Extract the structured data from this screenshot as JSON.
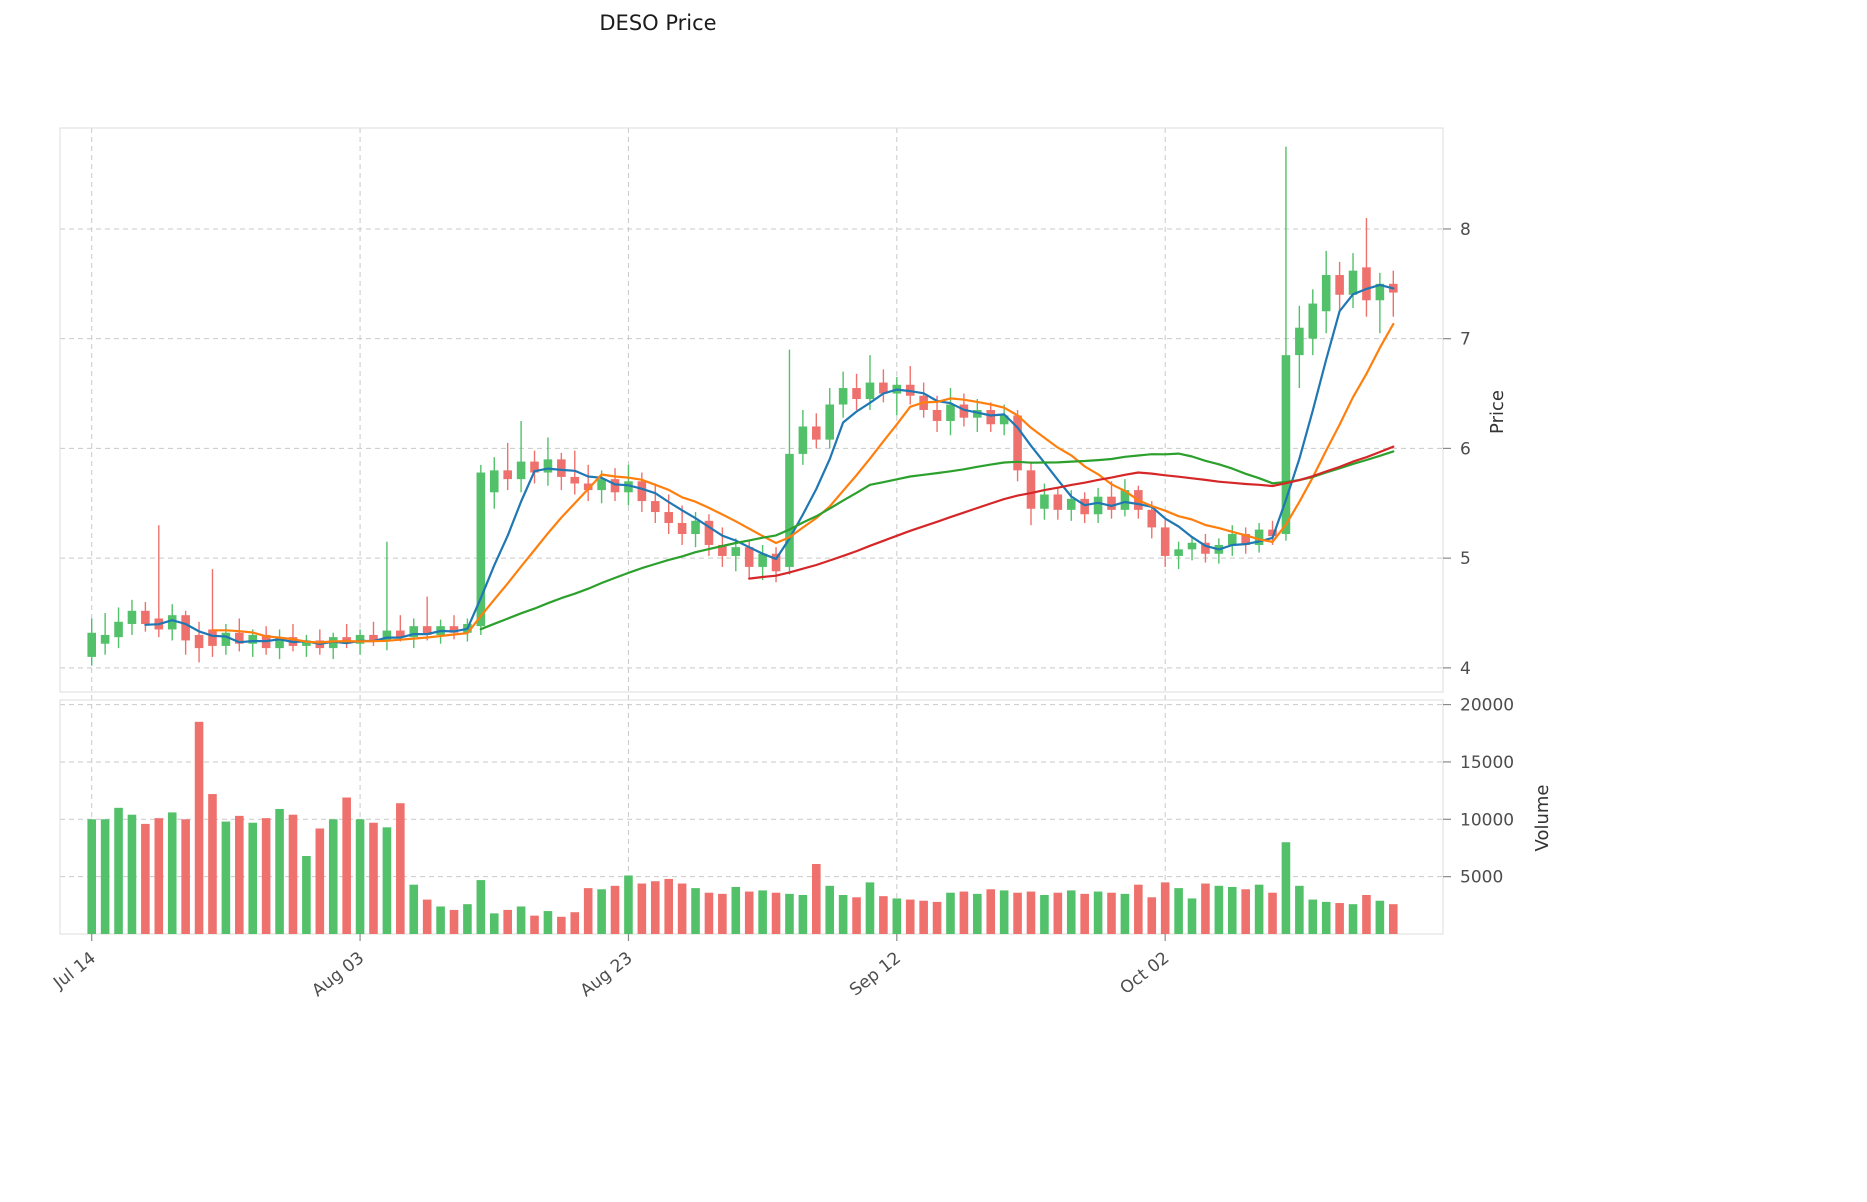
{
  "title": "DESO Price",
  "axes": {
    "price_label": "Price",
    "volume_label": "Volume",
    "price_ticks": [
      4,
      5,
      6,
      7,
      8
    ],
    "volume_ticks": [
      5000,
      10000,
      15000,
      20000
    ],
    "x_ticks": [
      {
        "label": "Jul 14",
        "index": 0
      },
      {
        "label": "Aug 03",
        "index": 20
      },
      {
        "label": "Aug 23",
        "index": 40
      },
      {
        "label": "Sep 12",
        "index": 60
      },
      {
        "label": "Oct 02",
        "index": 80
      }
    ]
  },
  "style": {
    "up_color": "#52c16a",
    "down_color": "#ef716d",
    "grid_color": "#c9c9c9",
    "spine_color": "#dcdcdc",
    "tick_color": "#8a8a8a"
  },
  "chart_data": {
    "type": "candlestick+volume",
    "title": "DESO Price",
    "ylabel_price": "Price",
    "ylabel_volume": "Volume",
    "price_ylim": [
      3.78,
      8.92
    ],
    "volume_ylim": [
      0,
      20400
    ],
    "grid": "dashed",
    "moving_averages": [
      {
        "name": "MA5",
        "period": 5,
        "color": "#1f77b4"
      },
      {
        "name": "MA10",
        "period": 10,
        "color": "#ff7f0e"
      },
      {
        "name": "MA30",
        "period": 30,
        "color": "#2ca02c"
      },
      {
        "name": "MA50",
        "period": 50,
        "color": "#d62728"
      }
    ],
    "ohlcv_columns": [
      "date",
      "open",
      "high",
      "low",
      "close",
      "volume"
    ],
    "ohlcv": [
      [
        "Jul 14",
        4.1,
        4.45,
        4.02,
        4.32,
        10000
      ],
      [
        "Jul 15",
        4.22,
        4.5,
        4.12,
        4.3,
        10000
      ],
      [
        "Jul 16",
        4.28,
        4.55,
        4.18,
        4.42,
        11000
      ],
      [
        "Jul 17",
        4.4,
        4.62,
        4.3,
        4.52,
        10400
      ],
      [
        "Jul 18",
        4.52,
        4.6,
        4.33,
        4.4,
        9600
      ],
      [
        "Jul 19",
        4.45,
        5.3,
        4.28,
        4.35,
        10100
      ],
      [
        "Jul 20",
        4.35,
        4.58,
        4.25,
        4.48,
        10600
      ],
      [
        "Jul 21",
        4.48,
        4.52,
        4.12,
        4.25,
        10000
      ],
      [
        "Jul 22",
        4.3,
        4.42,
        4.05,
        4.18,
        18500
      ],
      [
        "Jul 23",
        4.35,
        4.9,
        4.1,
        4.2,
        12200
      ],
      [
        "Jul 24",
        4.2,
        4.4,
        4.12,
        4.32,
        9800
      ],
      [
        "Jul 25",
        4.32,
        4.45,
        4.15,
        4.22,
        10300
      ],
      [
        "Jul 26",
        4.22,
        4.35,
        4.1,
        4.3,
        9700
      ],
      [
        "Jul 27",
        4.3,
        4.38,
        4.12,
        4.18,
        10100
      ],
      [
        "Jul 28",
        4.18,
        4.35,
        4.08,
        4.28,
        10900
      ],
      [
        "Jul 29",
        4.28,
        4.4,
        4.15,
        4.2,
        10400
      ],
      [
        "Jul 30",
        4.2,
        4.3,
        4.1,
        4.25,
        6800
      ],
      [
        "Jul 31",
        4.25,
        4.35,
        4.12,
        4.18,
        9200
      ],
      [
        "Aug 01",
        4.18,
        4.32,
        4.08,
        4.28,
        10000
      ],
      [
        "Aug 02",
        4.28,
        4.4,
        4.18,
        4.22,
        11900
      ],
      [
        "Aug 03",
        4.22,
        4.35,
        4.12,
        4.3,
        10000
      ],
      [
        "Aug 04",
        4.3,
        4.42,
        4.2,
        4.24,
        9700
      ],
      [
        "Aug 05",
        4.24,
        5.15,
        4.16,
        4.34,
        9300
      ],
      [
        "Aug 06",
        4.34,
        4.48,
        4.24,
        4.28,
        11400
      ],
      [
        "Aug 07",
        4.28,
        4.45,
        4.18,
        4.38,
        4300
      ],
      [
        "Aug 08",
        4.38,
        4.65,
        4.25,
        4.3,
        3000
      ],
      [
        "Aug 09",
        4.3,
        4.44,
        4.22,
        4.38,
        2400
      ],
      [
        "Aug 10",
        4.38,
        4.48,
        4.26,
        4.32,
        2100
      ],
      [
        "Aug 11",
        4.32,
        4.45,
        4.24,
        4.4,
        2600
      ],
      [
        "Aug 12",
        4.38,
        5.85,
        4.3,
        5.78,
        4700
      ],
      [
        "Aug 13",
        5.6,
        5.92,
        5.45,
        5.8,
        1800
      ],
      [
        "Aug 14",
        5.8,
        6.05,
        5.62,
        5.72,
        2100
      ],
      [
        "Aug 15",
        5.72,
        6.25,
        5.6,
        5.88,
        2400
      ],
      [
        "Aug 16",
        5.88,
        5.98,
        5.68,
        5.78,
        1600
      ],
      [
        "Aug 17",
        5.78,
        6.1,
        5.66,
        5.9,
        2000
      ],
      [
        "Aug 18",
        5.9,
        5.96,
        5.62,
        5.74,
        1500
      ],
      [
        "Aug 19",
        5.74,
        5.98,
        5.58,
        5.68,
        1900
      ],
      [
        "Aug 20",
        5.68,
        5.85,
        5.52,
        5.62,
        4000
      ],
      [
        "Aug 21",
        5.62,
        5.8,
        5.5,
        5.72,
        3900
      ],
      [
        "Aug 22",
        5.72,
        5.82,
        5.52,
        5.6,
        4200
      ],
      [
        "Aug 23",
        5.6,
        5.85,
        5.48,
        5.7,
        5100
      ],
      [
        "Aug 24",
        5.7,
        5.78,
        5.42,
        5.52,
        4400
      ],
      [
        "Aug 25",
        5.52,
        5.68,
        5.32,
        5.42,
        4600
      ],
      [
        "Aug 26",
        5.42,
        5.58,
        5.22,
        5.32,
        4800
      ],
      [
        "Aug 27",
        5.32,
        5.48,
        5.12,
        5.22,
        4400
      ],
      [
        "Aug 28",
        5.22,
        5.42,
        5.1,
        5.34,
        4000
      ],
      [
        "Aug 29",
        5.34,
        5.4,
        5.02,
        5.12,
        3600
      ],
      [
        "Aug 30",
        5.12,
        5.28,
        4.92,
        5.02,
        3500
      ],
      [
        "Aug 31",
        5.02,
        5.18,
        4.88,
        5.1,
        4100
      ],
      [
        "Sep 01",
        5.1,
        5.16,
        4.82,
        4.92,
        3700
      ],
      [
        "Sep 02",
        4.92,
        5.12,
        4.8,
        5.04,
        3800
      ],
      [
        "Sep 03",
        5.04,
        5.1,
        4.78,
        4.88,
        3600
      ],
      [
        "Sep 04",
        4.92,
        6.9,
        4.85,
        5.95,
        3500
      ],
      [
        "Sep 05",
        5.95,
        6.35,
        5.85,
        6.2,
        3400
      ],
      [
        "Sep 06",
        6.2,
        6.32,
        6.0,
        6.08,
        6100
      ],
      [
        "Sep 07",
        6.08,
        6.55,
        6.0,
        6.4,
        4200
      ],
      [
        "Sep 08",
        6.4,
        6.7,
        6.28,
        6.55,
        3400
      ],
      [
        "Sep 09",
        6.55,
        6.68,
        6.35,
        6.45,
        3200
      ],
      [
        "Sep 10",
        6.45,
        6.85,
        6.35,
        6.6,
        4500
      ],
      [
        "Sep 11",
        6.6,
        6.72,
        6.42,
        6.5,
        3300
      ],
      [
        "Sep 12",
        6.5,
        6.65,
        6.3,
        6.58,
        3100
      ],
      [
        "Sep 13",
        6.58,
        6.75,
        6.4,
        6.48,
        3000
      ],
      [
        "Sep 14",
        6.48,
        6.6,
        6.28,
        6.35,
        2900
      ],
      [
        "Sep 15",
        6.35,
        6.48,
        6.15,
        6.25,
        2800
      ],
      [
        "Sep 16",
        6.25,
        6.55,
        6.12,
        6.4,
        3600
      ],
      [
        "Sep 17",
        6.4,
        6.5,
        6.2,
        6.28,
        3700
      ],
      [
        "Sep 18",
        6.28,
        6.45,
        6.15,
        6.35,
        3500
      ],
      [
        "Sep 19",
        6.35,
        6.42,
        6.15,
        6.22,
        3900
      ],
      [
        "Sep 20",
        6.22,
        6.4,
        6.12,
        6.3,
        3800
      ],
      [
        "Sep 21",
        6.3,
        6.35,
        5.7,
        5.8,
        3600
      ],
      [
        "Sep 22",
        5.8,
        5.88,
        5.3,
        5.45,
        3700
      ],
      [
        "Sep 23",
        5.45,
        5.68,
        5.35,
        5.58,
        3400
      ],
      [
        "Sep 24",
        5.58,
        5.65,
        5.35,
        5.44,
        3600
      ],
      [
        "Sep 25",
        5.44,
        5.62,
        5.34,
        5.54,
        3800
      ],
      [
        "Sep 26",
        5.54,
        5.6,
        5.32,
        5.4,
        3500
      ],
      [
        "Sep 27",
        5.4,
        5.64,
        5.32,
        5.56,
        3700
      ],
      [
        "Sep 28",
        5.56,
        5.7,
        5.36,
        5.44,
        3600
      ],
      [
        "Sep 29",
        5.44,
        5.72,
        5.38,
        5.62,
        3500
      ],
      [
        "Sep 30",
        5.62,
        5.66,
        5.36,
        5.44,
        4300
      ],
      [
        "Oct 01",
        5.44,
        5.52,
        5.18,
        5.28,
        3200
      ],
      [
        "Oct 02",
        5.28,
        5.35,
        4.92,
        5.02,
        4500
      ],
      [
        "Oct 03",
        5.02,
        5.15,
        4.9,
        5.08,
        4000
      ],
      [
        "Oct 04",
        5.08,
        5.2,
        4.98,
        5.14,
        3100
      ],
      [
        "Oct 05",
        5.14,
        5.22,
        4.96,
        5.04,
        4400
      ],
      [
        "Oct 06",
        5.04,
        5.18,
        4.95,
        5.12,
        4200
      ],
      [
        "Oct 07",
        5.12,
        5.3,
        5.02,
        5.22,
        4100
      ],
      [
        "Oct 08",
        5.22,
        5.28,
        5.04,
        5.12,
        3900
      ],
      [
        "Oct 09",
        5.12,
        5.32,
        5.05,
        5.26,
        4300
      ],
      [
        "Oct 10",
        5.26,
        5.34,
        5.12,
        5.2,
        3600
      ],
      [
        "Oct 11",
        5.22,
        8.75,
        5.16,
        6.85,
        8000
      ],
      [
        "Oct 12",
        6.85,
        7.3,
        6.55,
        7.1,
        4200
      ],
      [
        "Oct 13",
        7.0,
        7.45,
        6.85,
        7.32,
        3000
      ],
      [
        "Oct 14",
        7.25,
        7.8,
        7.05,
        7.58,
        2800
      ],
      [
        "Oct 15",
        7.58,
        7.7,
        7.25,
        7.4,
        2700
      ],
      [
        "Oct 16",
        7.4,
        7.78,
        7.28,
        7.62,
        2600
      ],
      [
        "Oct 17",
        7.65,
        8.1,
        7.2,
        7.35,
        3400
      ],
      [
        "Oct 18",
        7.35,
        7.6,
        7.05,
        7.5,
        2900
      ],
      [
        "Oct 19",
        7.5,
        7.62,
        7.2,
        7.42,
        2600
      ]
    ]
  }
}
